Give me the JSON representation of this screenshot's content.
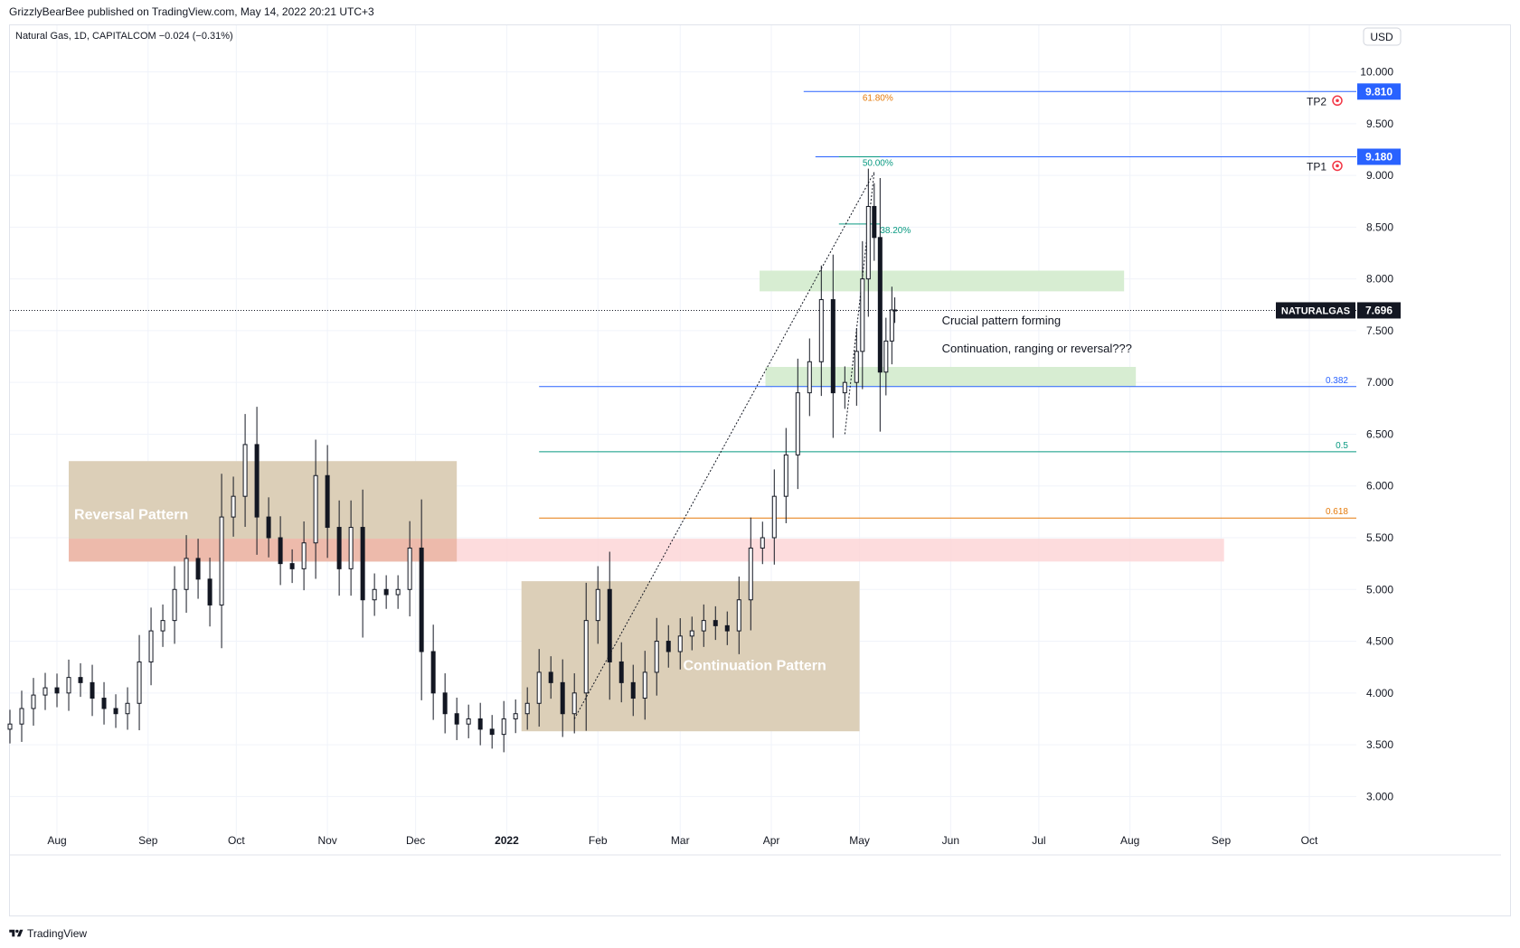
{
  "header": {
    "published_line": "GrizzlyBearBee published on TradingView.com, May 14, 2022 20:21 UTC+3"
  },
  "footer": {
    "brand": "TradingView",
    "logo_icon": "tradingview-logo-icon"
  },
  "colors": {
    "candle_up": "#ffffff",
    "candle_down": "#131722",
    "candle_outline": "#131722",
    "target_line": "#2962ff",
    "fib_green": "#089981",
    "fib_orange": "#e57a0a",
    "fib_blue": "#2962ff",
    "pattern_box": "#dccfb8",
    "resistance_zone": "#fdd4d6",
    "green_zone": "#d5ecd0"
  },
  "chart_data": {
    "type": "candlestick",
    "symbol_line": "Natural Gas, 1D, CAPITALCOM  −0.024 (−0.31%)",
    "currency": "USD",
    "y_ticks": [
      "10.000",
      "9.500",
      "9.000",
      "8.500",
      "8.000",
      "7.500",
      "7.000",
      "6.500",
      "6.000",
      "5.500",
      "5.000",
      "4.500",
      "4.000",
      "3.500",
      "3.000"
    ],
    "ylim": [
      2.75,
      10.45
    ],
    "x_ticks": [
      {
        "label": "Aug",
        "date": "2021-08-01"
      },
      {
        "label": "Sep",
        "date": "2021-09-01"
      },
      {
        "label": "Oct",
        "date": "2021-10-01"
      },
      {
        "label": "Nov",
        "date": "2021-11-01"
      },
      {
        "label": "Dec",
        "date": "2021-12-01"
      },
      {
        "label": "2022",
        "date": "2022-01-01",
        "bold": true
      },
      {
        "label": "Feb",
        "date": "2022-02-01"
      },
      {
        "label": "Mar",
        "date": "2022-03-01"
      },
      {
        "label": "Apr",
        "date": "2022-04-01"
      },
      {
        "label": "May",
        "date": "2022-05-01"
      },
      {
        "label": "Jun",
        "date": "2022-06-01"
      },
      {
        "label": "Jul",
        "date": "2022-07-01"
      },
      {
        "label": "Aug",
        "date": "2022-08-01"
      },
      {
        "label": "Sep",
        "date": "2022-09-01"
      },
      {
        "label": "Oct",
        "date": "2022-10-01"
      }
    ],
    "xlim": [
      "2021-07-16",
      "2022-10-17"
    ],
    "last_price": {
      "symbol": "NATURALGAS",
      "value": "7.696",
      "price": 7.696
    },
    "closes": [
      {
        "date": "2021-07-16",
        "c": 3.7
      },
      {
        "date": "2021-07-20",
        "c": 3.85
      },
      {
        "date": "2021-07-24",
        "c": 3.98
      },
      {
        "date": "2021-07-28",
        "c": 4.05
      },
      {
        "date": "2021-08-01",
        "c": 4.0
      },
      {
        "date": "2021-08-05",
        "c": 4.15
      },
      {
        "date": "2021-08-09",
        "c": 4.1
      },
      {
        "date": "2021-08-13",
        "c": 3.95
      },
      {
        "date": "2021-08-17",
        "c": 3.85
      },
      {
        "date": "2021-08-21",
        "c": 3.8
      },
      {
        "date": "2021-08-25",
        "c": 3.9
      },
      {
        "date": "2021-08-29",
        "c": 4.3
      },
      {
        "date": "2021-09-02",
        "c": 4.6
      },
      {
        "date": "2021-09-06",
        "c": 4.7
      },
      {
        "date": "2021-09-10",
        "c": 5.0
      },
      {
        "date": "2021-09-14",
        "c": 5.3
      },
      {
        "date": "2021-09-18",
        "c": 5.1
      },
      {
        "date": "2021-09-22",
        "c": 4.85
      },
      {
        "date": "2021-09-26",
        "c": 5.7
      },
      {
        "date": "2021-09-30",
        "c": 5.9
      },
      {
        "date": "2021-10-04",
        "c": 6.4
      },
      {
        "date": "2021-10-08",
        "c": 5.7
      },
      {
        "date": "2021-10-12",
        "c": 5.5
      },
      {
        "date": "2021-10-16",
        "c": 5.25
      },
      {
        "date": "2021-10-20",
        "c": 5.2
      },
      {
        "date": "2021-10-24",
        "c": 5.45
      },
      {
        "date": "2021-10-28",
        "c": 6.1
      },
      {
        "date": "2021-11-01",
        "c": 5.6
      },
      {
        "date": "2021-11-05",
        "c": 5.2
      },
      {
        "date": "2021-11-09",
        "c": 5.6
      },
      {
        "date": "2021-11-13",
        "c": 4.9
      },
      {
        "date": "2021-11-17",
        "c": 5.0
      },
      {
        "date": "2021-11-21",
        "c": 4.95
      },
      {
        "date": "2021-11-25",
        "c": 5.0
      },
      {
        "date": "2021-11-29",
        "c": 5.4
      },
      {
        "date": "2021-12-03",
        "c": 4.4
      },
      {
        "date": "2021-12-07",
        "c": 4.0
      },
      {
        "date": "2021-12-11",
        "c": 3.8
      },
      {
        "date": "2021-12-15",
        "c": 3.7
      },
      {
        "date": "2021-12-19",
        "c": 3.75
      },
      {
        "date": "2021-12-23",
        "c": 3.65
      },
      {
        "date": "2021-12-27",
        "c": 3.6
      },
      {
        "date": "2021-12-31",
        "c": 3.75
      },
      {
        "date": "2022-01-04",
        "c": 3.8
      },
      {
        "date": "2022-01-08",
        "c": 3.9
      },
      {
        "date": "2022-01-12",
        "c": 4.2
      },
      {
        "date": "2022-01-16",
        "c": 4.1
      },
      {
        "date": "2022-01-20",
        "c": 3.8
      },
      {
        "date": "2022-01-24",
        "c": 4.0
      },
      {
        "date": "2022-01-28",
        "c": 4.7
      },
      {
        "date": "2022-02-01",
        "c": 5.0
      },
      {
        "date": "2022-02-05",
        "c": 4.3
      },
      {
        "date": "2022-02-09",
        "c": 4.1
      },
      {
        "date": "2022-02-13",
        "c": 3.95
      },
      {
        "date": "2022-02-17",
        "c": 4.2
      },
      {
        "date": "2022-02-21",
        "c": 4.5
      },
      {
        "date": "2022-02-25",
        "c": 4.4
      },
      {
        "date": "2022-03-01",
        "c": 4.55
      },
      {
        "date": "2022-03-05",
        "c": 4.6
      },
      {
        "date": "2022-03-09",
        "c": 4.7
      },
      {
        "date": "2022-03-13",
        "c": 4.65
      },
      {
        "date": "2022-03-17",
        "c": 4.6
      },
      {
        "date": "2022-03-21",
        "c": 4.9
      },
      {
        "date": "2022-03-25",
        "c": 5.4
      },
      {
        "date": "2022-03-29",
        "c": 5.5
      },
      {
        "date": "2022-04-02",
        "c": 5.9
      },
      {
        "date": "2022-04-06",
        "c": 6.3
      },
      {
        "date": "2022-04-10",
        "c": 6.9
      },
      {
        "date": "2022-04-14",
        "c": 7.2
      },
      {
        "date": "2022-04-18",
        "c": 7.8
      },
      {
        "date": "2022-04-22",
        "c": 6.9
      },
      {
        "date": "2022-04-26",
        "c": 7.0
      },
      {
        "date": "2022-04-30",
        "c": 7.3
      },
      {
        "date": "2022-05-02",
        "c": 8.0
      },
      {
        "date": "2022-05-04",
        "c": 8.7
      },
      {
        "date": "2022-05-06",
        "c": 8.4
      },
      {
        "date": "2022-05-08",
        "c": 7.1
      },
      {
        "date": "2022-05-10",
        "c": 7.4
      },
      {
        "date": "2022-05-12",
        "c": 7.7
      },
      {
        "date": "2022-05-13",
        "c": 7.696
      }
    ],
    "horizontal_levels": [
      {
        "name": "TP2",
        "price": 9.81,
        "label": "9.810",
        "x_start": "2022-04-12",
        "line": "target",
        "tag": "TP2",
        "fib": "61.80%",
        "fib_color": "orange"
      },
      {
        "name": "TP1",
        "price": 9.18,
        "label": "9.180",
        "x_start": "2022-04-16",
        "line": "target",
        "tag": "TP1",
        "fib": "50.00%",
        "fib_color": "green"
      }
    ],
    "fib_segment_38": {
      "price": 8.53,
      "label": "38.20%"
    },
    "fib_retracement": [
      {
        "price": 6.96,
        "label": "0.382",
        "color": "blue"
      },
      {
        "price": 6.33,
        "label": "0.5",
        "color": "green"
      },
      {
        "price": 5.69,
        "label": "0.618",
        "color": "orange"
      }
    ],
    "zones": [
      {
        "name": "reversal-pattern",
        "label": "Reversal Pattern",
        "x": [
          "2021-08-05",
          "2021-12-15"
        ],
        "y": [
          5.27,
          6.24
        ],
        "kind": "pattern"
      },
      {
        "name": "continuation-pattern",
        "label": "Continuation Pattern",
        "x": [
          "2022-01-06",
          "2022-05-01"
        ],
        "y": [
          3.63,
          5.08
        ],
        "kind": "pattern"
      },
      {
        "name": "resistance-zone",
        "label": "",
        "x": [
          "2021-08-05",
          "2022-09-02"
        ],
        "y": [
          5.27,
          5.49
        ],
        "kind": "resistance"
      },
      {
        "name": "upper-green-zone",
        "label": "",
        "x": [
          "2022-03-28",
          "2022-07-30"
        ],
        "y": [
          7.88,
          8.08
        ],
        "kind": "green"
      },
      {
        "name": "lower-green-zone",
        "label": "",
        "x": [
          "2022-03-30",
          "2022-08-03"
        ],
        "y": [
          6.96,
          7.15
        ],
        "kind": "green"
      }
    ],
    "trend_lines": [
      {
        "from": {
          "date": "2022-01-24",
          "price": 3.75
        },
        "to": {
          "date": "2022-05-06",
          "price": 9.03
        }
      },
      {
        "from": {
          "date": "2022-04-26",
          "price": 6.5
        },
        "to": {
          "date": "2022-05-06",
          "price": 9.03
        }
      }
    ],
    "annotations": [
      {
        "name": "crucial-pattern-note",
        "text": "Crucial pattern forming",
        "date": "2022-05-29",
        "price": 7.56
      },
      {
        "name": "scenario-question",
        "text": "Continuation, ranging or reversal???",
        "date": "2022-05-29",
        "price": 7.29
      }
    ]
  }
}
